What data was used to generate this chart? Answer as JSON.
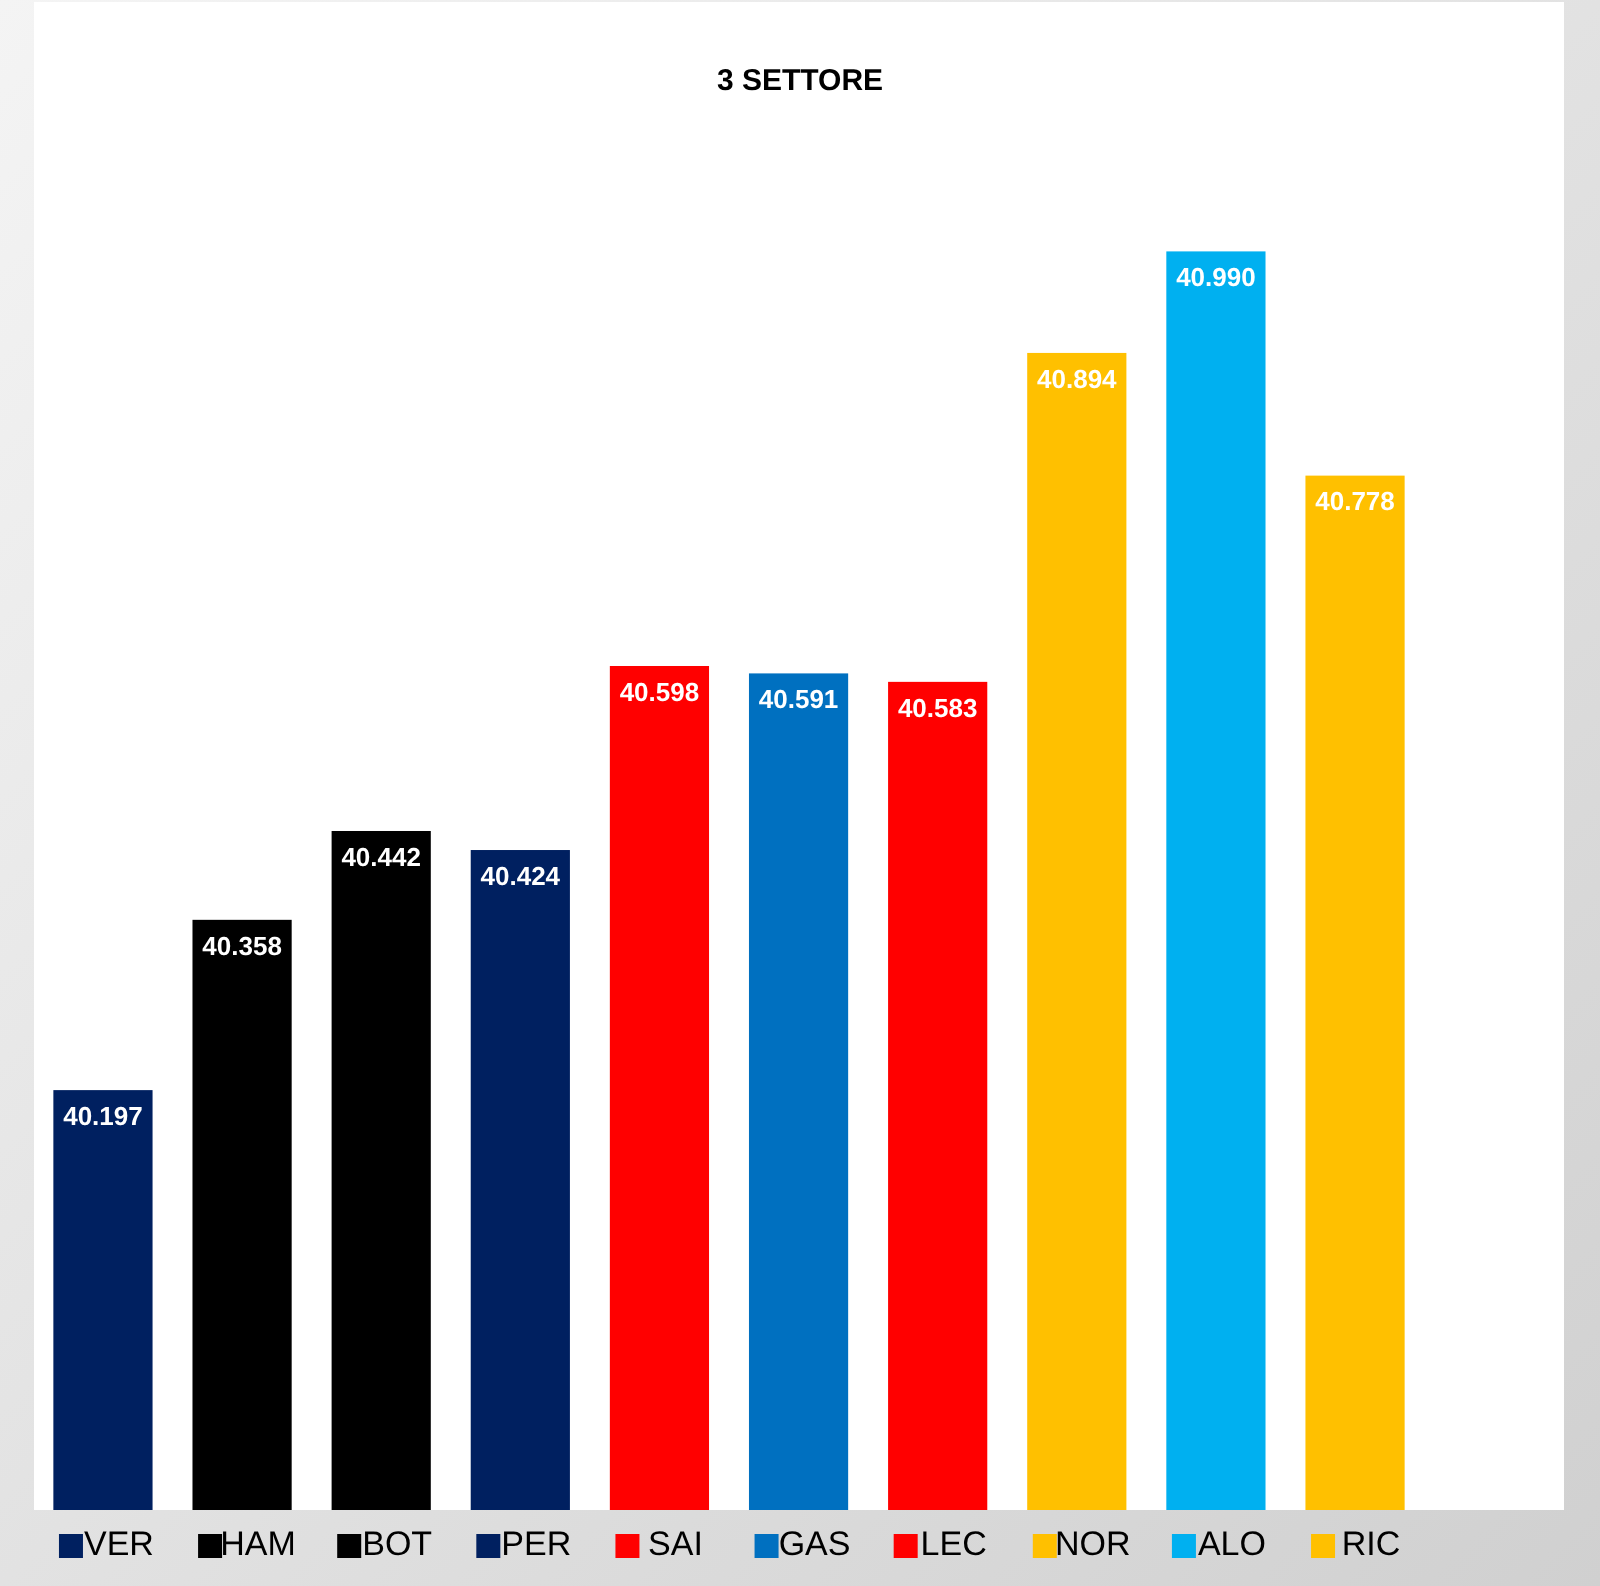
{
  "chart_data": {
    "type": "bar",
    "title": "3 SETTORE",
    "categories": [
      "VER",
      "HAM",
      "BOT",
      "PER",
      "SAI",
      "GAS",
      "LEC",
      "NOR",
      "ALO",
      "RIC"
    ],
    "values": [
      40.197,
      40.358,
      40.442,
      40.424,
      40.598,
      40.591,
      40.583,
      40.894,
      40.99,
      40.778
    ],
    "value_labels": [
      "40.197",
      "40.358",
      "40.442",
      "40.424",
      "40.598",
      "40.591",
      "40.583",
      "40.894",
      "40.990",
      "40.778"
    ],
    "colors": [
      "#002060",
      "#000000",
      "#000000",
      "#002060",
      "#ff0000",
      "#0070c0",
      "#ff0000",
      "#ffc000",
      "#00b0f0",
      "#ffc000"
    ],
    "ylim": [
      39.8,
      40.99
    ],
    "tick_labels": "x"
  }
}
